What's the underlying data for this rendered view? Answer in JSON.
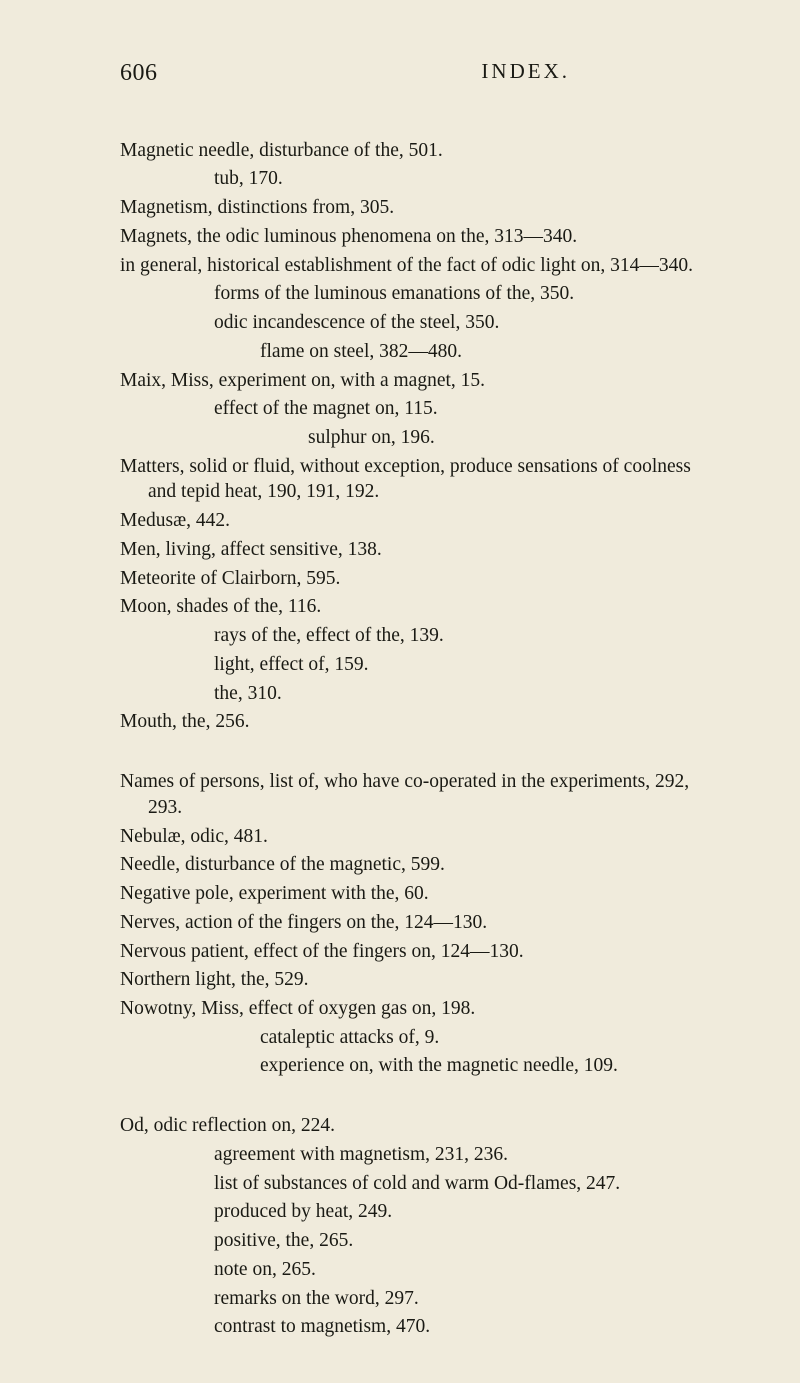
{
  "header": {
    "page_number": "606",
    "section_title": "INDEX."
  },
  "entries": [
    {
      "text": "Magnetic needle, disturbance of the, 501.",
      "cls": "entry"
    },
    {
      "text": "tub, 170.",
      "cls": "entry indent"
    },
    {
      "text": "Magnetism, distinctions from, 305.",
      "cls": "entry"
    },
    {
      "text": "Magnets, the odic luminous phenomena on the, 313—340.",
      "cls": "entry"
    },
    {
      "text": "in general, historical establishment of the fact of odic light on, 314—340.",
      "cls": "entry indent hang"
    },
    {
      "text": "forms of the luminous emanations of the, 350.",
      "cls": "entry indent"
    },
    {
      "text": "odic incandescence of the steel, 350.",
      "cls": "entry indent"
    },
    {
      "text": "flame on steel, 382—480.",
      "cls": "entry indent2"
    },
    {
      "text": "Maix, Miss, experiment on, with a magnet, 15.",
      "cls": "entry"
    },
    {
      "text": "effect of the magnet on, 115.",
      "cls": "entry indent"
    },
    {
      "text": "sulphur on, 196.",
      "cls": "entry indent3"
    },
    {
      "text": "Matters, solid or fluid, without exception, produce sensations of coolness and tepid heat, 190, 191, 192.",
      "cls": "entry hang"
    },
    {
      "text": "Medusæ, 442.",
      "cls": "entry"
    },
    {
      "text": "Men, living, affect sensitive, 138.",
      "cls": "entry"
    },
    {
      "text": "Meteorite of Clairborn, 595.",
      "cls": "entry"
    },
    {
      "text": "Moon, shades of the, 116.",
      "cls": "entry"
    },
    {
      "text": "rays of the, effect of the, 139.",
      "cls": "entry indent"
    },
    {
      "text": "light, effect of, 159.",
      "cls": "entry indent"
    },
    {
      "text": "the, 310.",
      "cls": "entry indent"
    },
    {
      "text": "Mouth, the, 256.",
      "cls": "entry"
    },
    {
      "text": "Names of persons, list of, who have co-operated in the experiments, 292, 293.",
      "cls": "entry hang group-gap"
    },
    {
      "text": "Nebulæ, odic, 481.",
      "cls": "entry"
    },
    {
      "text": "Needle, disturbance of the magnetic, 599.",
      "cls": "entry"
    },
    {
      "text": "Negative pole, experiment with the, 60.",
      "cls": "entry"
    },
    {
      "text": "Nerves, action of the fingers on the, 124—130.",
      "cls": "entry"
    },
    {
      "text": "Nervous patient, effect of the fingers on, 124—130.",
      "cls": "entry"
    },
    {
      "text": "Northern light, the, 529.",
      "cls": "entry"
    },
    {
      "text": "Nowotny, Miss, effect of oxygen gas on, 198.",
      "cls": "entry"
    },
    {
      "text": "cataleptic attacks of, 9.",
      "cls": "entry indent2"
    },
    {
      "text": "experience on, with the magnetic needle, 109.",
      "cls": "entry indent2"
    },
    {
      "text": "Od, odic reflection on, 224.",
      "cls": "entry group-gap"
    },
    {
      "text": "agreement with magnetism, 231, 236.",
      "cls": "entry indent"
    },
    {
      "text": "list of substances of cold and warm Od-flames, 247.",
      "cls": "entry indent"
    },
    {
      "text": "produced by heat, 249.",
      "cls": "entry indent"
    },
    {
      "text": "positive, the, 265.",
      "cls": "entry indent"
    },
    {
      "text": "note on, 265.",
      "cls": "entry indent"
    },
    {
      "text": "remarks on the word, 297.",
      "cls": "entry indent"
    },
    {
      "text": "contrast to magnetism, 470.",
      "cls": "entry indent"
    }
  ]
}
